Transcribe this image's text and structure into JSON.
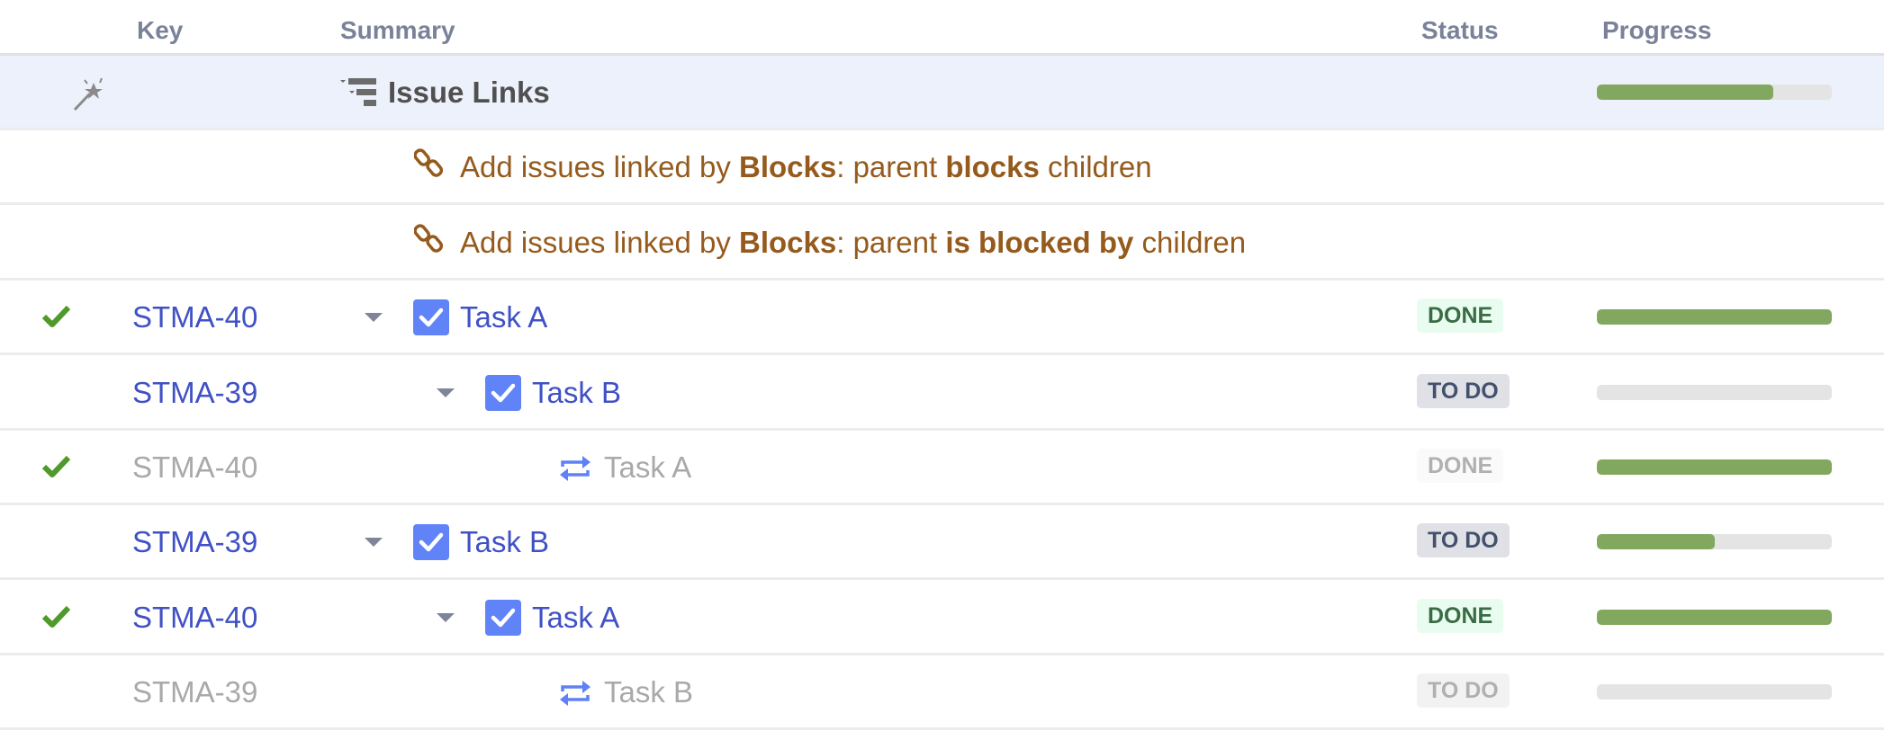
{
  "columns": {
    "key": "Key",
    "summary": "Summary",
    "status": "Status",
    "progress": "Progress"
  },
  "colors": {
    "accent": "#3f51c5",
    "progress": "#82a860",
    "link": "#955a1c",
    "done_check": "#4f9a2a"
  },
  "group": {
    "icon": "magic-wand-icon",
    "title": "Issue Links",
    "progress": 75
  },
  "link_rows": [
    {
      "icon": "link-icon",
      "prefix": "Add issues linked by ",
      "type": "Blocks",
      "sep": ": parent ",
      "rel": "blocks",
      "suffix": " children"
    },
    {
      "icon": "link-icon",
      "prefix": "Add issues linked by ",
      "type": "Blocks",
      "sep": ": parent ",
      "rel": "is blocked by",
      "suffix": " children"
    }
  ],
  "rows": [
    {
      "key": "STMA-40",
      "summary": "Task A",
      "status": "DONE",
      "resolved": true,
      "level": 0,
      "duplicate": false,
      "progress": 100
    },
    {
      "key": "STMA-39",
      "summary": "Task B",
      "status": "TO DO",
      "resolved": false,
      "level": 1,
      "duplicate": false,
      "progress": 0
    },
    {
      "key": "STMA-40",
      "summary": "Task A",
      "status": "DONE",
      "resolved": true,
      "level": 2,
      "duplicate": true,
      "progress": 100
    },
    {
      "key": "STMA-39",
      "summary": "Task B",
      "status": "TO DO",
      "resolved": false,
      "level": 0,
      "duplicate": false,
      "progress": 50
    },
    {
      "key": "STMA-40",
      "summary": "Task A",
      "status": "DONE",
      "resolved": true,
      "level": 1,
      "duplicate": false,
      "progress": 100
    },
    {
      "key": "STMA-39",
      "summary": "Task B",
      "status": "TO DO",
      "resolved": false,
      "level": 2,
      "duplicate": true,
      "progress": 0
    }
  ]
}
